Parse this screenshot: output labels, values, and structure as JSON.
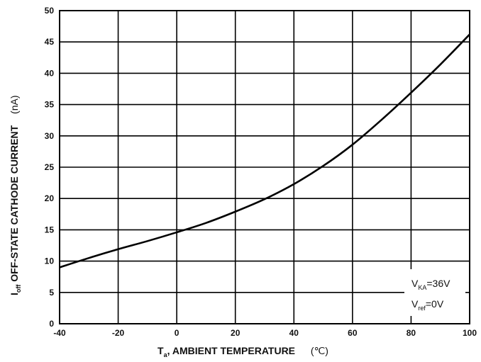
{
  "chart_data": {
    "type": "line",
    "title": "",
    "xlabel": {
      "main": "T",
      "sub": "a",
      "rest": ", AMBIENT TEMPERATURE",
      "unit": "(℃)"
    },
    "ylabel": {
      "main": "I",
      "sub": "off",
      "rest": "  OFF-STATE CATHODE CURRENT",
      "unit": "(nA)"
    },
    "xlim": [
      -40,
      100
    ],
    "ylim": [
      0,
      50
    ],
    "xticks": [
      "-40",
      "-20",
      "0",
      "20",
      "40",
      "60",
      "80",
      "100"
    ],
    "yticks": [
      "0",
      "5",
      "10",
      "15",
      "20",
      "25",
      "30",
      "35",
      "40",
      "45",
      "50"
    ],
    "grid": true,
    "series": [
      {
        "name": "",
        "color": "#000000",
        "x": [
          -40,
          -30,
          -20,
          -10,
          0,
          10,
          20,
          30,
          40,
          50,
          60,
          70,
          80,
          90,
          100
        ],
        "y": [
          9.0,
          10.5,
          11.9,
          13.2,
          14.6,
          16.1,
          17.9,
          19.9,
          22.3,
          25.2,
          28.6,
          32.6,
          36.9,
          41.4,
          46.2
        ]
      }
    ],
    "annotations": [
      {
        "main": "V",
        "sub": "KA",
        "rest": "=36V"
      },
      {
        "main": "V",
        "sub": "ref",
        "rest": "=0V"
      }
    ]
  }
}
